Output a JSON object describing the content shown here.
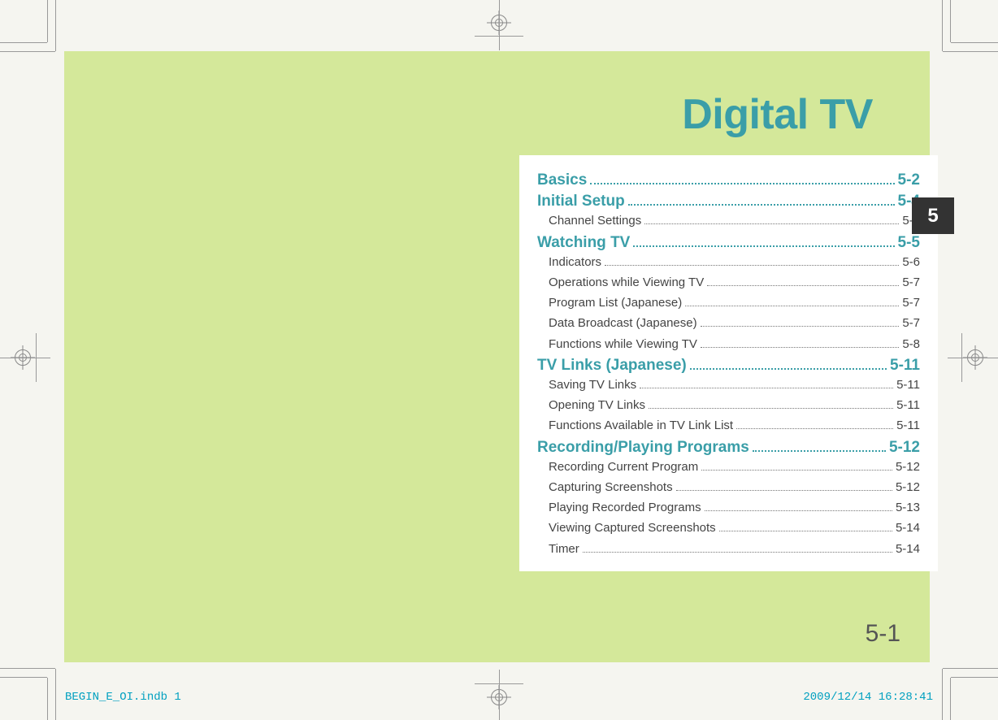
{
  "colors": {
    "page_bg": "#d4e89a",
    "body_bg": "#f5f5f0",
    "toc_bg": "#ffffff",
    "accent_teal": "#3a9ea8",
    "tab_bg": "#333333",
    "tab_fg": "#ffffff",
    "body_text": "#444444",
    "imprint_color": "#00a0c0"
  },
  "chapter": {
    "title": "Digital TV",
    "tab_number": "5",
    "page_number": "5-1"
  },
  "toc": {
    "sections": [
      {
        "title": "Basics",
        "page": "5-2",
        "items": []
      },
      {
        "title": "Initial Setup",
        "page": "5-4",
        "items": [
          {
            "title": "Channel Settings",
            "page": "5-4"
          }
        ]
      },
      {
        "title": "Watching TV",
        "page": "5-5",
        "items": [
          {
            "title": "Indicators",
            "page": "5-6"
          },
          {
            "title": "Operations while Viewing TV",
            "page": "5-7"
          },
          {
            "title": "Program List (Japanese)",
            "page": "5-7"
          },
          {
            "title": "Data Broadcast (Japanese)",
            "page": "5-7"
          },
          {
            "title": "Functions while Viewing TV",
            "page": "5-8"
          }
        ]
      },
      {
        "title": "TV Links (Japanese)",
        "page": "5-11",
        "items": [
          {
            "title": "Saving TV Links",
            "page": "5-11"
          },
          {
            "title": "Opening TV Links",
            "page": "5-11"
          },
          {
            "title": "Functions Available in TV Link List",
            "page": "5-11"
          }
        ]
      },
      {
        "title": "Recording/Playing Programs",
        "page": "5-12",
        "items": [
          {
            "title": "Recording Current Program",
            "page": "5-12"
          },
          {
            "title": "Capturing Screenshots",
            "page": "5-12"
          },
          {
            "title": "Playing Recorded Programs",
            "page": "5-13"
          },
          {
            "title": "Viewing Captured Screenshots",
            "page": "5-14"
          },
          {
            "title": "Timer",
            "page": "5-14"
          }
        ]
      }
    ]
  },
  "imprint": {
    "file": "BEGIN_E_OI.indb   1",
    "timestamp": "2009/12/14   16:28:41"
  }
}
